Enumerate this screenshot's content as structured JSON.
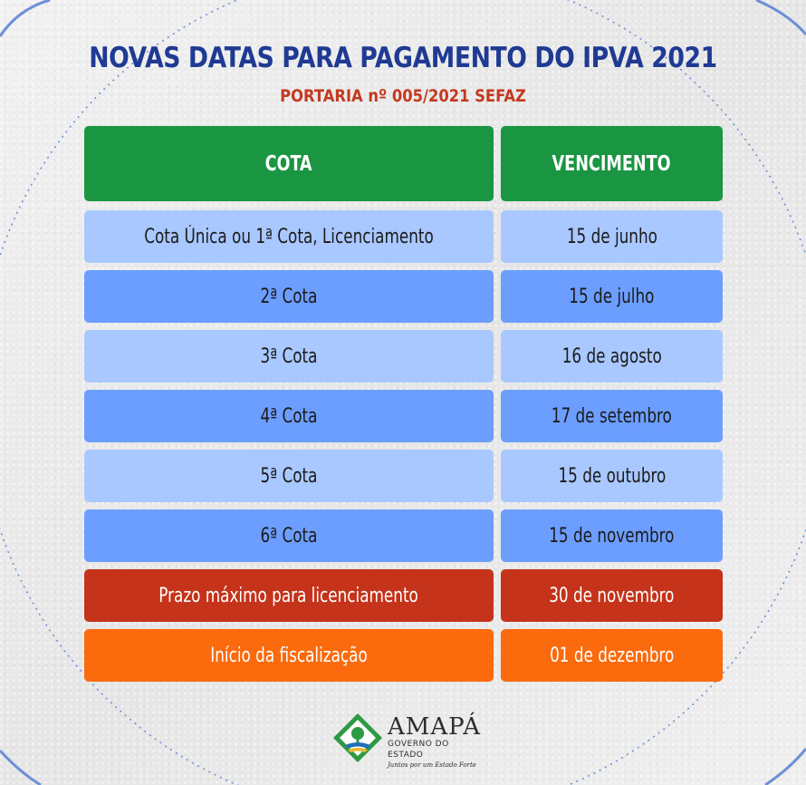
{
  "header": {
    "title": "NOVAS DATAS PARA PAGAMENTO DO IPVA 2021",
    "subtitle": "PORTARIA nº 005/2021 SEFAZ"
  },
  "table": {
    "columns": [
      "COTA",
      "VENCIMENTO"
    ],
    "rows": [
      {
        "cota": "Cota Única ou 1ª Cota, Licenciamento",
        "vencimento": "15 de junho"
      },
      {
        "cota": "2ª Cota",
        "vencimento": "15 de julho"
      },
      {
        "cota": "3ª Cota",
        "vencimento": "16 de agosto"
      },
      {
        "cota": "4ª Cota",
        "vencimento": "17 de setembro"
      },
      {
        "cota": "5ª Cota",
        "vencimento": "15 de outubro"
      },
      {
        "cota": "6ª Cota",
        "vencimento": "15 de novembro"
      },
      {
        "cota": "Prazo máximo para licenciamento",
        "vencimento": "30 de novembro"
      },
      {
        "cota": "Início da fiscalização",
        "vencimento": "01 de dezembro"
      }
    ]
  },
  "logo": {
    "name": "AMAPÁ",
    "sub": "GOVERNO DO ESTADO",
    "tagline": "Juntos por um Estado Forte"
  },
  "colors": {
    "title": "#1f3a93",
    "subtitle": "#c4391f",
    "header_green": "#1a9541",
    "row_light_blue": "#a9c8ff",
    "row_blue": "#6c9eff",
    "row_red": "#c4331a",
    "row_orange": "#fb6a0c"
  }
}
